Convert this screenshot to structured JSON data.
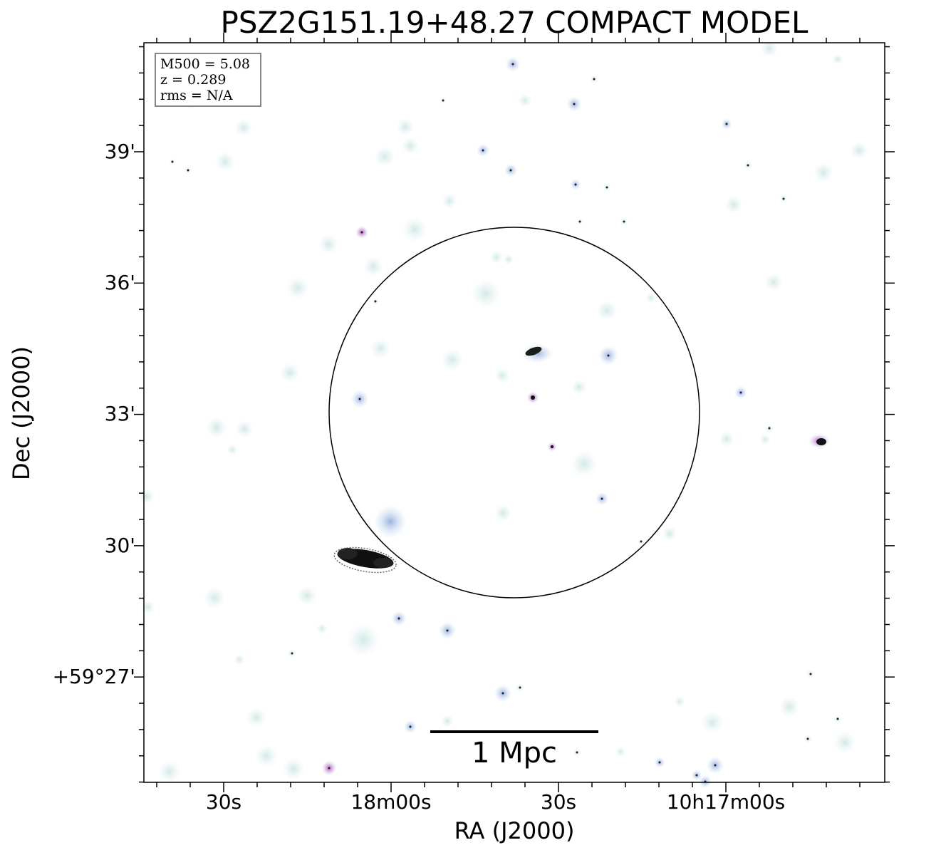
{
  "title": "PSZ2G151.19+48.27 COMPACT MODEL",
  "axes": {
    "xlabel": "RA (J2000)",
    "ylabel": "Dec (J2000)",
    "xticks": [
      "30s",
      "18m00s",
      "30s",
      "10h17m00s"
    ],
    "yticks": [
      "39'",
      "36'",
      "33'",
      "30'",
      "+59°27'"
    ]
  },
  "info": {
    "mass": "M500 = 5.08",
    "redshift": "z = 0.289",
    "rms": "rms = N/A"
  },
  "scalebar": {
    "label": "1 Mpc"
  },
  "colors": {
    "source_faint": "#cde6e6",
    "source_blue": "#9fb8e0",
    "source_core": "#1a1f3a",
    "source_magenta": "#c04ca0",
    "circle": "#000000"
  }
}
